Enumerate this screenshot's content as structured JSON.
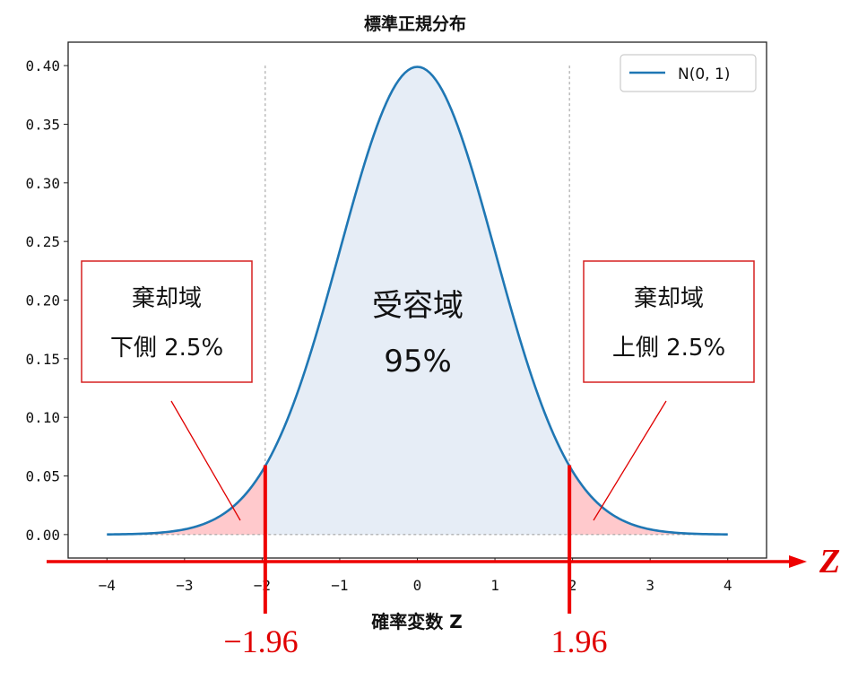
{
  "chart_data": {
    "type": "area",
    "title": "標準正規分布",
    "xlabel": "確率変数 Z",
    "ylabel": "",
    "xlim": [
      -4.5,
      4.5
    ],
    "ylim": [
      -0.02,
      0.42
    ],
    "x_ticks": [
      -4,
      -3,
      -2,
      -1,
      0,
      1,
      2,
      3,
      4
    ],
    "x_tick_labels": [
      "−4",
      "−3",
      "−2",
      "−1",
      "0",
      "1",
      "2",
      "3",
      "4"
    ],
    "y_ticks": [
      0.0,
      0.05,
      0.1,
      0.15,
      0.2,
      0.25,
      0.3,
      0.35,
      0.4
    ],
    "y_tick_labels": [
      "0.00",
      "0.05",
      "0.10",
      "0.15",
      "0.20",
      "0.25",
      "0.30",
      "0.35",
      "0.40"
    ],
    "series": [
      {
        "name": "N(0, 1)",
        "color": "#1f77b4",
        "x": [
          -4.0,
          -3.5,
          -3.0,
          -2.5,
          -2.0,
          -1.96,
          -1.5,
          -1.0,
          -0.5,
          0.0,
          0.5,
          1.0,
          1.5,
          1.96,
          2.0,
          2.5,
          3.0,
          3.5,
          4.0
        ],
        "y": [
          0.0001,
          0.0009,
          0.0044,
          0.0175,
          0.054,
          0.0584,
          0.1295,
          0.242,
          0.3521,
          0.3989,
          0.3521,
          0.242,
          0.1295,
          0.0584,
          0.054,
          0.0175,
          0.0044,
          0.0009,
          0.0001
        ]
      }
    ],
    "critical_values": [
      -1.96,
      1.96
    ],
    "critical_labels": [
      "−1.96",
      "1.96"
    ],
    "regions": {
      "accept_color": "#e6edf6",
      "reject_color": "#ffc9cc"
    },
    "legend": {
      "position": "top-right",
      "label": "N(0, 1)"
    },
    "z_axis_label": "Z",
    "accent_color": "#ee0000",
    "annotations": {
      "left_box": {
        "line1": "棄却域",
        "line2": "下側 2.5%"
      },
      "right_box": {
        "line1": "棄却域",
        "line2": "上側 2.5%"
      },
      "center": {
        "line1": "受容域",
        "line2": "95%"
      }
    }
  }
}
